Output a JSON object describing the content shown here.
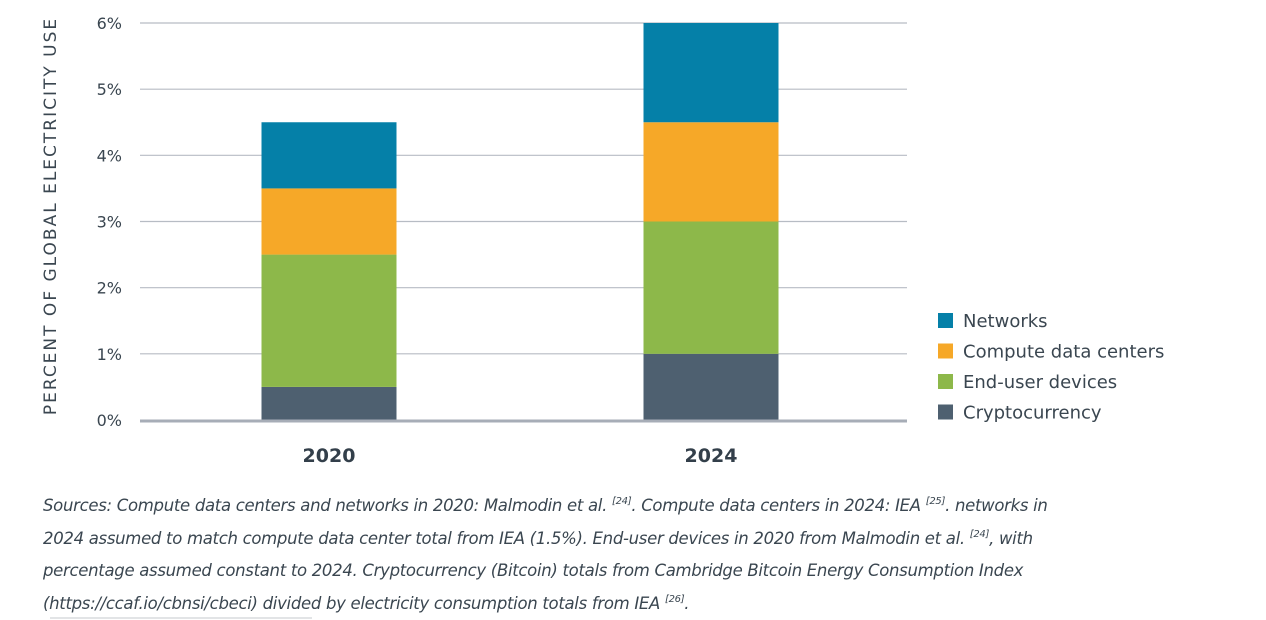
{
  "chart_data": {
    "type": "bar",
    "stacked": true,
    "title": "",
    "xlabel": "",
    "ylabel": "PERCENT OF GLOBAL ELECTRICITY USE",
    "categories": [
      "2020",
      "2024"
    ],
    "ylim": [
      0,
      6
    ],
    "yticks": [
      0,
      1,
      2,
      3,
      4,
      5,
      6
    ],
    "ytick_labels": [
      "0%",
      "1%",
      "2%",
      "3%",
      "4%",
      "5%",
      "6%"
    ],
    "grid": true,
    "legend_position": "right",
    "series": [
      {
        "name": "Cryptocurrency",
        "color": "#4e6070",
        "values": [
          0.5,
          1.0
        ]
      },
      {
        "name": "End-user devices",
        "color": "#8db84a",
        "values": [
          2.0,
          2.0
        ]
      },
      {
        "name": "Compute data centers",
        "color": "#f6a828",
        "values": [
          1.0,
          1.5
        ]
      },
      {
        "name": "Networks",
        "color": "#0580a8",
        "values": [
          1.0,
          1.5
        ]
      }
    ],
    "legend_order": [
      "Networks",
      "Compute data centers",
      "End-user devices",
      "Cryptocurrency"
    ]
  },
  "caption": {
    "lines": [
      [
        {
          "t": "Sources: Compute data centers and networks in 2020: Malmodin et al. "
        },
        {
          "sup": "[24]"
        },
        {
          "t": ". Compute data centers in 2024: IEA "
        },
        {
          "sup": "[25]"
        },
        {
          "t": ". networks in"
        }
      ],
      [
        {
          "t": "2024 assumed to match compute data center total from IEA (1.5%). End-user devices in 2020 from Malmodin et al. "
        },
        {
          "sup": "[24]"
        },
        {
          "t": ", with"
        }
      ],
      [
        {
          "t": "percentage assumed constant to 2024. Cryptocurrency (Bitcoin) totals from Cambridge Bitcoin Energy Consumption Index"
        }
      ],
      [
        {
          "t": "(https://ccaf.io/cbnsi/cbeci) divided by electricity consumption totals from IEA "
        },
        {
          "sup": "[26]"
        },
        {
          "t": "."
        }
      ]
    ]
  }
}
